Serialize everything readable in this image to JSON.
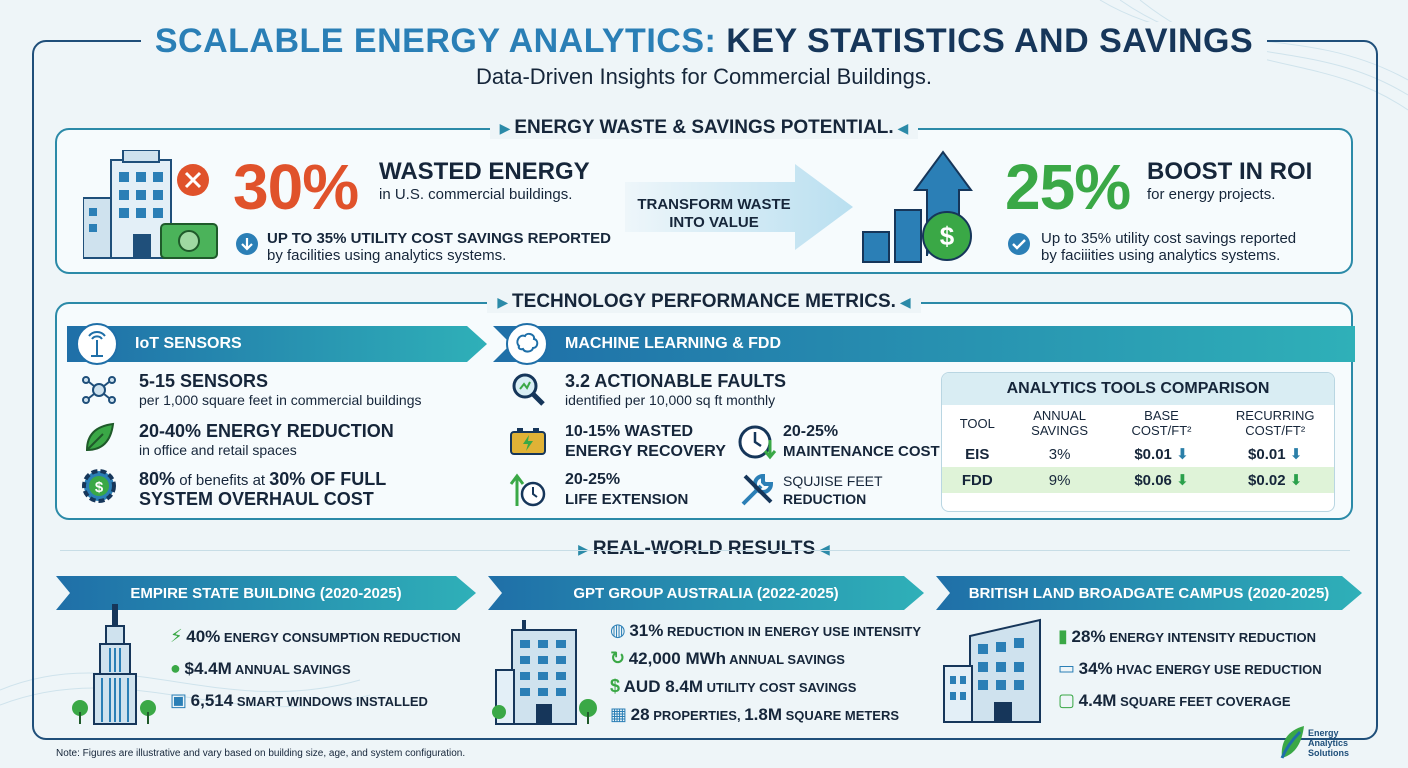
{
  "header": {
    "title_part1": "SCALABLE ENERGY ANALYTICS:",
    "title_part2": "KEY STATISTICS AND SAVINGS",
    "subtitle": "Data-Driven Insights for Commercial Buildings."
  },
  "waste_panel": {
    "title": "ENERGY WASTE & SAVINGS POTENTIAL.",
    "left": {
      "percent": "30%",
      "headline": "WASTED ENERGY",
      "sub": "in U.S. commercial buildings.",
      "note_line1": "UP TO 35% UTILITY COST SAVINGS REPORTED",
      "note_line2": "by facilities using analytics systems."
    },
    "transform_line1": "TRANSFORM WASTE",
    "transform_line2": "INTO VALUE",
    "right": {
      "percent": "25%",
      "headline": "BOOST IN ROI",
      "sub": "for energy projects.",
      "note_line1": "Up to 35% utility cost savings reported",
      "note_line2": "by faciiities using analytics systems."
    }
  },
  "tech_panel": {
    "title": "TECHNOLOGY PERFORMANCE METRICS.",
    "iot_label": "IoT SENSORS",
    "ml_label": "MACHINE LEARNING & FDD",
    "iot_metrics": [
      {
        "head": "5-15 SENSORS",
        "sub": "per 1,000 square feet in commercial buildings"
      },
      {
        "head": "20-40% ENERGY REDUCTION",
        "sub": "in office and retail spaces"
      },
      {
        "head_pre": "80%",
        "head_mid": " of benefits at ",
        "head_post": "30% OF FULL",
        "head_line2": "SYSTEM OVERHAUL COST"
      }
    ],
    "ml_metrics": {
      "faults_head": "3.2 ACTIONABLE FAULTS",
      "faults_sub": "identified per 10,000 sq ft monthly",
      "recovery_line1": "10-15% WASTED",
      "recovery_line2": "ENERGY RECOVERY",
      "maint_line1": "20-25%",
      "maint_line2": "MAINTENANCE COST",
      "life_line1": "20-25%",
      "life_line2": "LIFE EXTENSION",
      "sq_line1": "SQUJISE FEET",
      "sq_line2": "REDUCTION"
    },
    "comparison": {
      "title": "ANALYTICS TOOLS COMPARISON",
      "headers": [
        "TOOL",
        "ANNUAL SAVINGS",
        "BASE COST/FT²",
        "RECURRING COST/FT²"
      ],
      "header_line1": [
        "TOOL",
        "ANNUAL",
        "BASE",
        "RECURRING"
      ],
      "header_line2": [
        "",
        "SAVINGS",
        "COST/FT²",
        "COST/FT²"
      ],
      "rows": [
        {
          "tool": "EIS",
          "savings": "3%",
          "base": "$0.01",
          "recurring": "$0.01"
        },
        {
          "tool": "FDD",
          "savings": "9%",
          "base": "$0.06",
          "recurring": "$0.02"
        }
      ],
      "highlight_color": "#dff3d8"
    }
  },
  "results": {
    "title": "REAL-WORLD RESULTS",
    "cards": [
      {
        "banner": "EMPIRE STATE BUILDING (2020-2025)",
        "items": [
          {
            "value": "40%",
            "text": "ENERGY CONSUMPTION REDUCTION",
            "icon": "lightning-icon"
          },
          {
            "value": "$4.4M",
            "text": "ANNUAL SAVINGS",
            "icon": "coins-icon"
          },
          {
            "value": "6,514",
            "text": "SMART WINDOWS INSTALLED",
            "icon": "window-icon"
          }
        ]
      },
      {
        "banner": "GPT GROUP AUSTRALIA (2022-2025)",
        "items": [
          {
            "value": "31%",
            "text": "REDUCTION IN ENERGY USE INTENSITY",
            "icon": "globe-icon"
          },
          {
            "value": "42,000 MWh",
            "text": "ANNUAL SAVINGS",
            "icon": "recycle-energy-icon"
          },
          {
            "value": "AUD 8.4M",
            "text": "UTILITY COST SAVINGS",
            "icon": "dollar-coin-icon"
          },
          {
            "value": "28",
            "text": "PROPERTIES, ",
            "value2": "1.8M",
            "text2": "SQUARE METERS",
            "icon": "building-icon"
          }
        ]
      },
      {
        "banner": "BRITISH LAND BROADGATE CAMPUS (2020-2025)",
        "items": [
          {
            "value": "28%",
            "text": "ENERGY INTENSITY REDUCTION",
            "icon": "bar-chart-icon"
          },
          {
            "value": "34%",
            "text": "HVAC ENERGY USE REDUCTION",
            "icon": "hvac-icon"
          },
          {
            "value": "4.4M",
            "text": "SQUARE FEET COVERAGE",
            "icon": "area-icon"
          }
        ]
      }
    ]
  },
  "footer": {
    "note": "Note: Figures are illustrative and vary based on building size, age, and system configuration.",
    "logo_line1": "Energy",
    "logo_line2": "Analytics",
    "logo_line3": "Solutions"
  },
  "colors": {
    "accent_red": "#e0522b",
    "accent_green": "#3aa846",
    "accent_teal": "#2b8aa8",
    "navy": "#16365a"
  }
}
